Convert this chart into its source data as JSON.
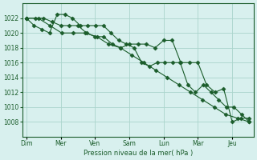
{
  "background_color": "#d8f0ee",
  "grid_color": "#aad4cc",
  "line_color": "#1a5c2a",
  "marker_color": "#1a5c2a",
  "xlabel": "Pression niveau de la mer( hPa )",
  "ylim": [
    1006,
    1024
  ],
  "yticks": [
    1008,
    1010,
    1012,
    1014,
    1016,
    1018,
    1020,
    1022
  ],
  "day_labels": [
    "Dim",
    "Mer",
    "Ven",
    "",
    "Sam",
    "",
    "Lun",
    "",
    "Mar",
    "",
    "",
    "",
    "Jeu"
  ],
  "day_positions": [
    0,
    2,
    4,
    6,
    8,
    10,
    12,
    14,
    16,
    18,
    20,
    22,
    24
  ],
  "series1": [
    1022,
    1022,
    1022,
    1021.5,
    1021,
    1021,
    1021,
    1020,
    1019.5,
    1019.5,
    1018.5,
    1018,
    1018.5,
    1018.5,
    1018.5,
    1018,
    1019,
    1019,
    1016,
    1016,
    1016,
    1013,
    1012,
    1012.5,
    1008,
    1008.5,
    1008.5
  ],
  "series2": [
    1022,
    1021,
    1020.5,
    1020,
    1022.5,
    1022.5,
    1022,
    1021,
    1021,
    1021,
    1021,
    1020,
    1019,
    1018.5,
    1018,
    1016,
    1015.5,
    1016,
    1016,
    1016,
    1016,
    1013,
    1012,
    1013,
    1012,
    1011,
    1010,
    1010,
    1009,
    1008
  ],
  "series3": [
    1022,
    1022,
    1021,
    1020,
    1020,
    1020,
    1019.5,
    1018.5,
    1018,
    1017,
    1016,
    1015,
    1014,
    1013,
    1012,
    1011,
    1010,
    1009,
    1008.5,
    1008
  ]
}
